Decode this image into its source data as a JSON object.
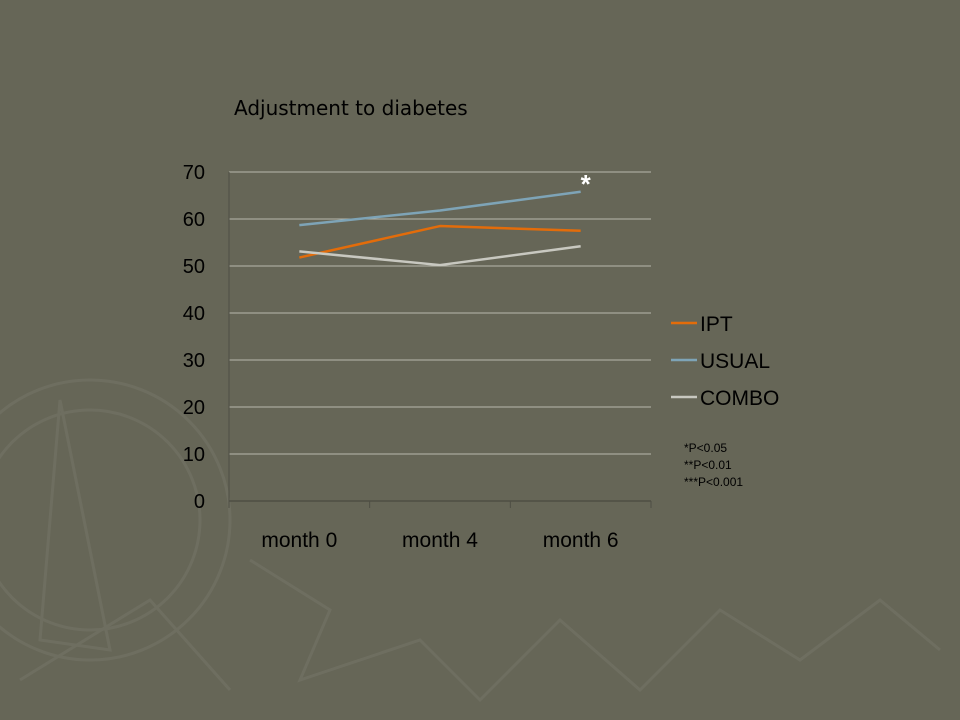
{
  "colors": {
    "background": "#666657",
    "grid": "#b8b8ad",
    "axis": "#4e4e44"
  },
  "chart_data": {
    "type": "line",
    "title": "Adjustment to diabetes",
    "categories": [
      "month 0",
      "month 4",
      "month 6"
    ],
    "ylim": [
      0,
      70
    ],
    "yticks": [
      0,
      10,
      20,
      30,
      40,
      50,
      60,
      70
    ],
    "grid": true,
    "legend_position": "right",
    "series": [
      {
        "name": "IPT",
        "values": [
          51.8,
          58.5,
          57.5
        ],
        "color": "#e36c0a"
      },
      {
        "name": "USUAL",
        "values": [
          58.7,
          61.8,
          65.8
        ],
        "color": "#7ea4b7"
      },
      {
        "name": "COMBO",
        "values": [
          53.1,
          50.2,
          54.2
        ],
        "color": "#c8c8c0"
      }
    ],
    "annotations": [
      {
        "text": "*",
        "category": "month 6",
        "value": 68.5
      }
    ],
    "significance_notes": [
      "*P<0.05",
      "**P<0.01",
      "***P<0.001"
    ]
  }
}
